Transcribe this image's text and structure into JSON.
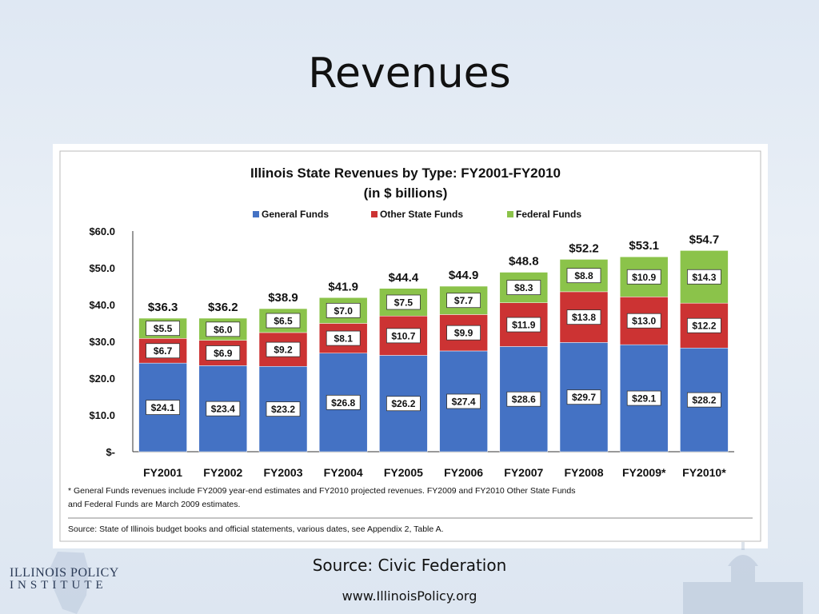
{
  "slide": {
    "title": "Revenues",
    "source_caption": "Source: Civic Federation",
    "url": "www.IllinoisPolicy.org",
    "brand_line1": "ILLINOIS POLICY",
    "brand_line2": "INSTITUTE"
  },
  "chart_data": {
    "type": "bar",
    "stacked": true,
    "title": "Illinois State Revenues by Type: FY2001-FY2010",
    "subtitle": "(in $ billions)",
    "categories": [
      "FY2001",
      "FY2002",
      "FY2003",
      "FY2004",
      "FY2005",
      "FY2006",
      "FY2007",
      "FY2008",
      "FY2009*",
      "FY2010*"
    ],
    "series": [
      {
        "name": "General Funds",
        "color": "#4472c4",
        "values": [
          24.1,
          23.4,
          23.2,
          26.8,
          26.2,
          27.4,
          28.6,
          29.7,
          29.1,
          28.2
        ]
      },
      {
        "name": "Other State Funds",
        "color": "#cc3333",
        "values": [
          6.7,
          6.9,
          9.2,
          8.1,
          10.7,
          9.9,
          11.9,
          13.8,
          13.0,
          12.2
        ]
      },
      {
        "name": "Federal Funds",
        "color": "#8bc34a",
        "values": [
          5.5,
          6.0,
          6.5,
          7.0,
          7.5,
          7.7,
          8.3,
          8.8,
          10.9,
          14.3
        ]
      }
    ],
    "totals": [
      36.3,
      36.2,
      38.9,
      41.9,
      44.4,
      44.9,
      48.8,
      52.2,
      53.1,
      54.7
    ],
    "y_ticks": [
      "$-",
      "$10.0",
      "$20.0",
      "$30.0",
      "$40.0",
      "$50.0",
      "$60.0"
    ],
    "ylim": [
      0,
      60
    ],
    "legend_position": "top-center",
    "footnote_lines": [
      "* General Funds revenues include FY2009 year-end estimates and FY2010 projected revenues.  FY2009 and FY2010 Other State Funds",
      "and Federal Funds are March 2009 estimates."
    ],
    "source_note": "Source: State of Illinois budget books and official statements, various dates, see Appendix 2, Table A."
  }
}
